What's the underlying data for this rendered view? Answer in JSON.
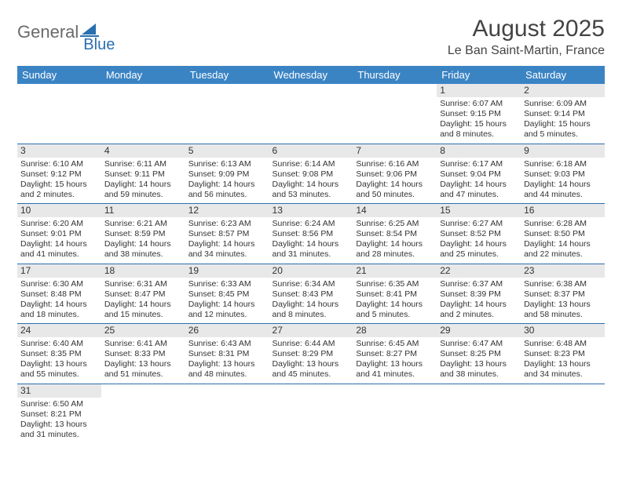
{
  "logo": {
    "general": "General",
    "blue": "Blue"
  },
  "title": "August 2025",
  "location": "Le Ban Saint-Martin, France",
  "colors": {
    "header_bg": "#3b84c4",
    "border": "#2a6fb0",
    "daynum_bg": "#e8e8e8"
  },
  "daysOfWeek": [
    "Sunday",
    "Monday",
    "Tuesday",
    "Wednesday",
    "Thursday",
    "Friday",
    "Saturday"
  ],
  "weeks": [
    [
      {
        "n": "",
        "sr": "",
        "ss": "",
        "dl": ""
      },
      {
        "n": "",
        "sr": "",
        "ss": "",
        "dl": ""
      },
      {
        "n": "",
        "sr": "",
        "ss": "",
        "dl": ""
      },
      {
        "n": "",
        "sr": "",
        "ss": "",
        "dl": ""
      },
      {
        "n": "",
        "sr": "",
        "ss": "",
        "dl": ""
      },
      {
        "n": "1",
        "sr": "Sunrise: 6:07 AM",
        "ss": "Sunset: 9:15 PM",
        "dl": "Daylight: 15 hours and 8 minutes."
      },
      {
        "n": "2",
        "sr": "Sunrise: 6:09 AM",
        "ss": "Sunset: 9:14 PM",
        "dl": "Daylight: 15 hours and 5 minutes."
      }
    ],
    [
      {
        "n": "3",
        "sr": "Sunrise: 6:10 AM",
        "ss": "Sunset: 9:12 PM",
        "dl": "Daylight: 15 hours and 2 minutes."
      },
      {
        "n": "4",
        "sr": "Sunrise: 6:11 AM",
        "ss": "Sunset: 9:11 PM",
        "dl": "Daylight: 14 hours and 59 minutes."
      },
      {
        "n": "5",
        "sr": "Sunrise: 6:13 AM",
        "ss": "Sunset: 9:09 PM",
        "dl": "Daylight: 14 hours and 56 minutes."
      },
      {
        "n": "6",
        "sr": "Sunrise: 6:14 AM",
        "ss": "Sunset: 9:08 PM",
        "dl": "Daylight: 14 hours and 53 minutes."
      },
      {
        "n": "7",
        "sr": "Sunrise: 6:16 AM",
        "ss": "Sunset: 9:06 PM",
        "dl": "Daylight: 14 hours and 50 minutes."
      },
      {
        "n": "8",
        "sr": "Sunrise: 6:17 AM",
        "ss": "Sunset: 9:04 PM",
        "dl": "Daylight: 14 hours and 47 minutes."
      },
      {
        "n": "9",
        "sr": "Sunrise: 6:18 AM",
        "ss": "Sunset: 9:03 PM",
        "dl": "Daylight: 14 hours and 44 minutes."
      }
    ],
    [
      {
        "n": "10",
        "sr": "Sunrise: 6:20 AM",
        "ss": "Sunset: 9:01 PM",
        "dl": "Daylight: 14 hours and 41 minutes."
      },
      {
        "n": "11",
        "sr": "Sunrise: 6:21 AM",
        "ss": "Sunset: 8:59 PM",
        "dl": "Daylight: 14 hours and 38 minutes."
      },
      {
        "n": "12",
        "sr": "Sunrise: 6:23 AM",
        "ss": "Sunset: 8:57 PM",
        "dl": "Daylight: 14 hours and 34 minutes."
      },
      {
        "n": "13",
        "sr": "Sunrise: 6:24 AM",
        "ss": "Sunset: 8:56 PM",
        "dl": "Daylight: 14 hours and 31 minutes."
      },
      {
        "n": "14",
        "sr": "Sunrise: 6:25 AM",
        "ss": "Sunset: 8:54 PM",
        "dl": "Daylight: 14 hours and 28 minutes."
      },
      {
        "n": "15",
        "sr": "Sunrise: 6:27 AM",
        "ss": "Sunset: 8:52 PM",
        "dl": "Daylight: 14 hours and 25 minutes."
      },
      {
        "n": "16",
        "sr": "Sunrise: 6:28 AM",
        "ss": "Sunset: 8:50 PM",
        "dl": "Daylight: 14 hours and 22 minutes."
      }
    ],
    [
      {
        "n": "17",
        "sr": "Sunrise: 6:30 AM",
        "ss": "Sunset: 8:48 PM",
        "dl": "Daylight: 14 hours and 18 minutes."
      },
      {
        "n": "18",
        "sr": "Sunrise: 6:31 AM",
        "ss": "Sunset: 8:47 PM",
        "dl": "Daylight: 14 hours and 15 minutes."
      },
      {
        "n": "19",
        "sr": "Sunrise: 6:33 AM",
        "ss": "Sunset: 8:45 PM",
        "dl": "Daylight: 14 hours and 12 minutes."
      },
      {
        "n": "20",
        "sr": "Sunrise: 6:34 AM",
        "ss": "Sunset: 8:43 PM",
        "dl": "Daylight: 14 hours and 8 minutes."
      },
      {
        "n": "21",
        "sr": "Sunrise: 6:35 AM",
        "ss": "Sunset: 8:41 PM",
        "dl": "Daylight: 14 hours and 5 minutes."
      },
      {
        "n": "22",
        "sr": "Sunrise: 6:37 AM",
        "ss": "Sunset: 8:39 PM",
        "dl": "Daylight: 14 hours and 2 minutes."
      },
      {
        "n": "23",
        "sr": "Sunrise: 6:38 AM",
        "ss": "Sunset: 8:37 PM",
        "dl": "Daylight: 13 hours and 58 minutes."
      }
    ],
    [
      {
        "n": "24",
        "sr": "Sunrise: 6:40 AM",
        "ss": "Sunset: 8:35 PM",
        "dl": "Daylight: 13 hours and 55 minutes."
      },
      {
        "n": "25",
        "sr": "Sunrise: 6:41 AM",
        "ss": "Sunset: 8:33 PM",
        "dl": "Daylight: 13 hours and 51 minutes."
      },
      {
        "n": "26",
        "sr": "Sunrise: 6:43 AM",
        "ss": "Sunset: 8:31 PM",
        "dl": "Daylight: 13 hours and 48 minutes."
      },
      {
        "n": "27",
        "sr": "Sunrise: 6:44 AM",
        "ss": "Sunset: 8:29 PM",
        "dl": "Daylight: 13 hours and 45 minutes."
      },
      {
        "n": "28",
        "sr": "Sunrise: 6:45 AM",
        "ss": "Sunset: 8:27 PM",
        "dl": "Daylight: 13 hours and 41 minutes."
      },
      {
        "n": "29",
        "sr": "Sunrise: 6:47 AM",
        "ss": "Sunset: 8:25 PM",
        "dl": "Daylight: 13 hours and 38 minutes."
      },
      {
        "n": "30",
        "sr": "Sunrise: 6:48 AM",
        "ss": "Sunset: 8:23 PM",
        "dl": "Daylight: 13 hours and 34 minutes."
      }
    ],
    [
      {
        "n": "31",
        "sr": "Sunrise: 6:50 AM",
        "ss": "Sunset: 8:21 PM",
        "dl": "Daylight: 13 hours and 31 minutes."
      },
      {
        "n": "",
        "sr": "",
        "ss": "",
        "dl": ""
      },
      {
        "n": "",
        "sr": "",
        "ss": "",
        "dl": ""
      },
      {
        "n": "",
        "sr": "",
        "ss": "",
        "dl": ""
      },
      {
        "n": "",
        "sr": "",
        "ss": "",
        "dl": ""
      },
      {
        "n": "",
        "sr": "",
        "ss": "",
        "dl": ""
      },
      {
        "n": "",
        "sr": "",
        "ss": "",
        "dl": ""
      }
    ]
  ]
}
